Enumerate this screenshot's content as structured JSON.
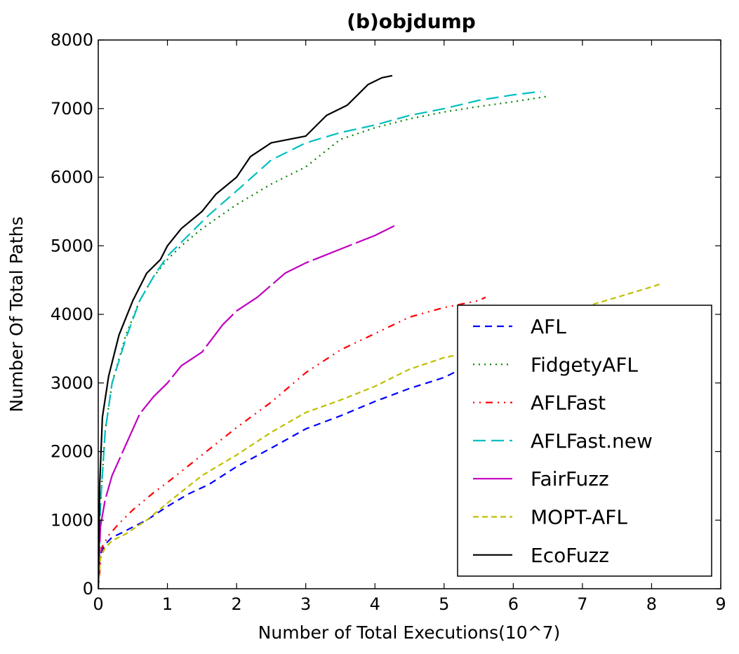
{
  "chart_data": {
    "type": "line",
    "title": "(b)objdump",
    "xlabel": "Number of Total Executions(10^7)",
    "ylabel": "Number Of Total Paths",
    "xlim": [
      0,
      9
    ],
    "ylim": [
      0,
      8000
    ],
    "xticks": [
      "0",
      "1",
      "2",
      "3",
      "4",
      "5",
      "6",
      "7",
      "8",
      "9"
    ],
    "yticks": [
      "0",
      "1000",
      "2000",
      "3000",
      "4000",
      "5000",
      "6000",
      "7000",
      "8000"
    ],
    "grid": false,
    "legend_position": "lower-right",
    "series": [
      {
        "name": "AFL",
        "color": "#0000ff",
        "dash": "10 7",
        "points": [
          [
            0,
            0
          ],
          [
            0.02,
            450
          ],
          [
            0.05,
            550
          ],
          [
            0.1,
            650
          ],
          [
            0.2,
            750
          ],
          [
            0.35,
            820
          ],
          [
            0.5,
            900
          ],
          [
            0.7,
            1000
          ],
          [
            1.0,
            1200
          ],
          [
            1.3,
            1380
          ],
          [
            1.6,
            1520
          ],
          [
            2.0,
            1780
          ],
          [
            2.5,
            2050
          ],
          [
            3.0,
            2330
          ],
          [
            3.5,
            2520
          ],
          [
            4.0,
            2730
          ],
          [
            4.5,
            2920
          ],
          [
            5.0,
            3080
          ],
          [
            5.2,
            3180
          ]
        ]
      },
      {
        "name": "FidgetyAFL",
        "color": "#008000",
        "dash": "2 6",
        "points": [
          [
            0,
            0
          ],
          [
            0.03,
            1200
          ],
          [
            0.1,
            2300
          ],
          [
            0.2,
            3000
          ],
          [
            0.4,
            3700
          ],
          [
            0.6,
            4200
          ],
          [
            0.8,
            4550
          ],
          [
            1.0,
            4800
          ],
          [
            1.2,
            5000
          ],
          [
            1.5,
            5250
          ],
          [
            2.0,
            5600
          ],
          [
            2.5,
            5900
          ],
          [
            3.0,
            6150
          ],
          [
            3.5,
            6550
          ],
          [
            4.0,
            6720
          ],
          [
            4.5,
            6850
          ],
          [
            5.0,
            6950
          ],
          [
            5.5,
            7030
          ],
          [
            6.0,
            7100
          ],
          [
            6.5,
            7180
          ]
        ]
      },
      {
        "name": "AFLFast",
        "color": "#ff0000",
        "dash": "2 7 2 7 10 7",
        "points": [
          [
            0,
            0
          ],
          [
            0.05,
            600
          ],
          [
            0.15,
            780
          ],
          [
            0.3,
            950
          ],
          [
            0.5,
            1150
          ],
          [
            0.8,
            1400
          ],
          [
            1.0,
            1550
          ],
          [
            1.5,
            1950
          ],
          [
            2.0,
            2350
          ],
          [
            2.5,
            2720
          ],
          [
            3.0,
            3150
          ],
          [
            3.5,
            3480
          ],
          [
            4.0,
            3720
          ],
          [
            4.5,
            3960
          ],
          [
            5.0,
            4100
          ],
          [
            5.5,
            4200
          ],
          [
            5.6,
            4250
          ]
        ]
      },
      {
        "name": "AFLFast.new",
        "color": "#00bfbf",
        "dash": "18 8",
        "points": [
          [
            0,
            0
          ],
          [
            0.03,
            1200
          ],
          [
            0.1,
            2300
          ],
          [
            0.2,
            3000
          ],
          [
            0.4,
            3650
          ],
          [
            0.6,
            4200
          ],
          [
            0.8,
            4550
          ],
          [
            1.0,
            4850
          ],
          [
            1.3,
            5150
          ],
          [
            1.6,
            5450
          ],
          [
            2.0,
            5800
          ],
          [
            2.5,
            6250
          ],
          [
            3.0,
            6500
          ],
          [
            3.5,
            6650
          ],
          [
            4.0,
            6760
          ],
          [
            4.5,
            6900
          ],
          [
            5.0,
            7000
          ],
          [
            5.5,
            7120
          ],
          [
            6.0,
            7200
          ],
          [
            6.4,
            7250
          ]
        ]
      },
      {
        "name": "FairFuzz",
        "color": "#bf00bf",
        "dash": "60 6",
        "points": [
          [
            0,
            0
          ],
          [
            0.03,
            900
          ],
          [
            0.1,
            1300
          ],
          [
            0.2,
            1650
          ],
          [
            0.4,
            2100
          ],
          [
            0.6,
            2550
          ],
          [
            0.8,
            2800
          ],
          [
            1.0,
            3000
          ],
          [
            1.2,
            3250
          ],
          [
            1.5,
            3450
          ],
          [
            1.8,
            3850
          ],
          [
            2.0,
            4050
          ],
          [
            2.3,
            4250
          ],
          [
            2.7,
            4600
          ],
          [
            3.0,
            4750
          ],
          [
            3.5,
            4950
          ],
          [
            4.0,
            5150
          ],
          [
            4.3,
            5300
          ]
        ]
      },
      {
        "name": "MOPT-AFL",
        "color": "#bfbf00",
        "dash": "8 5",
        "points": [
          [
            0,
            0
          ],
          [
            0.03,
            450
          ],
          [
            0.1,
            600
          ],
          [
            0.2,
            700
          ],
          [
            0.4,
            800
          ],
          [
            0.7,
            1000
          ],
          [
            1.0,
            1250
          ],
          [
            1.5,
            1650
          ],
          [
            2.0,
            1950
          ],
          [
            2.5,
            2280
          ],
          [
            3.0,
            2570
          ],
          [
            3.5,
            2750
          ],
          [
            4.0,
            2950
          ],
          [
            4.5,
            3200
          ],
          [
            5.0,
            3370
          ],
          [
            5.5,
            3470
          ],
          [
            6.0,
            3750
          ],
          [
            6.5,
            3950
          ],
          [
            7.0,
            4100
          ],
          [
            7.5,
            4250
          ],
          [
            8.0,
            4400
          ],
          [
            8.15,
            4450
          ]
        ]
      },
      {
        "name": "EcoFuzz",
        "color": "#000000",
        "dash": "",
        "points": [
          [
            0,
            0
          ],
          [
            0.02,
            1500
          ],
          [
            0.06,
            2500
          ],
          [
            0.15,
            3100
          ],
          [
            0.3,
            3700
          ],
          [
            0.5,
            4200
          ],
          [
            0.7,
            4600
          ],
          [
            0.9,
            4800
          ],
          [
            1.0,
            5000
          ],
          [
            1.2,
            5250
          ],
          [
            1.5,
            5500
          ],
          [
            1.7,
            5750
          ],
          [
            2.0,
            6000
          ],
          [
            2.2,
            6300
          ],
          [
            2.5,
            6500
          ],
          [
            3.0,
            6600
          ],
          [
            3.3,
            6900
          ],
          [
            3.6,
            7050
          ],
          [
            3.9,
            7350
          ],
          [
            4.1,
            7450
          ],
          [
            4.25,
            7480
          ]
        ]
      }
    ]
  }
}
